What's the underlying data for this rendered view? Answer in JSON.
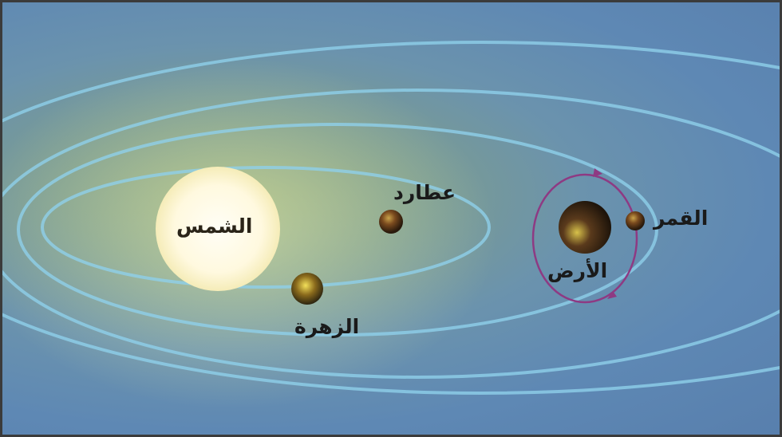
{
  "labels": {
    "sun": "الشمس",
    "mercury": "عطارد",
    "venus": "الزهرة",
    "earth": "الأرض",
    "moon": "القمر"
  },
  "colors": {
    "background": "#5e88b4",
    "orbit": "#8fd0ea",
    "sun": "#fffbe6",
    "moon_orbit": "#8e3a83"
  }
}
